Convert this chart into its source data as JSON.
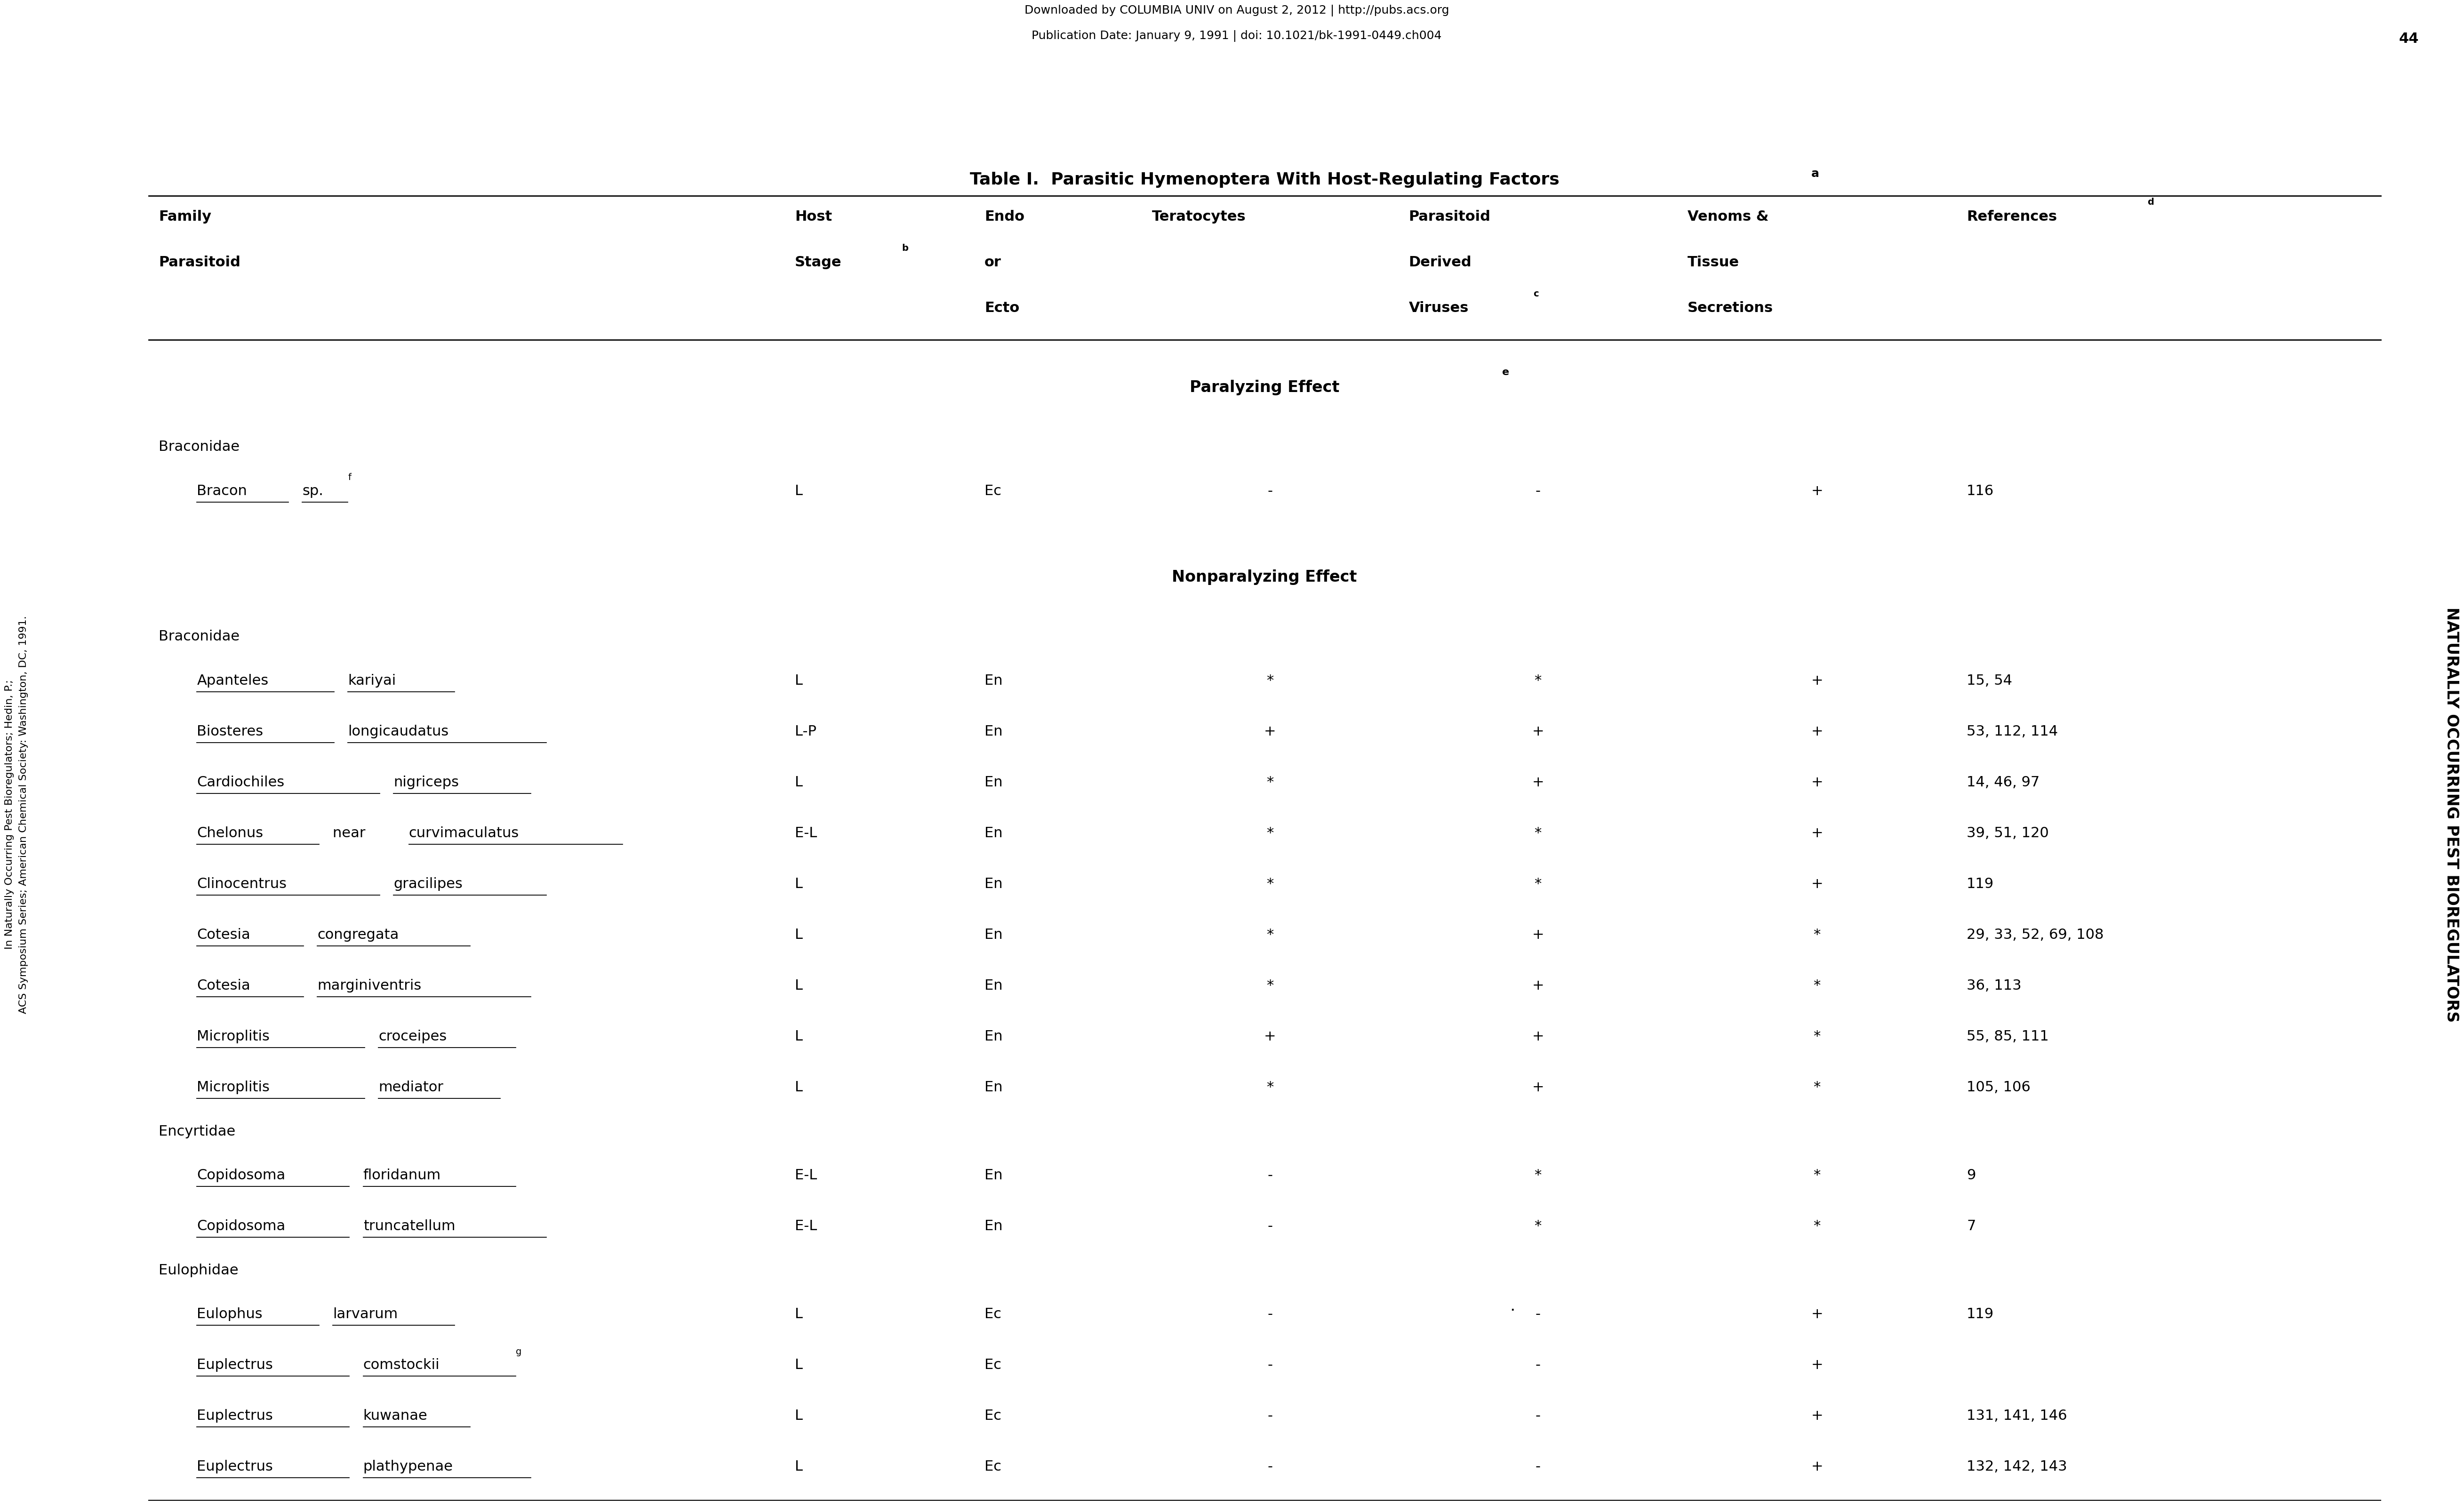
{
  "title": "Table I.  Parasitic Hymenoptera With Host-Regulating Factors",
  "title_superscript": "a",
  "header_top_line1": "Downloaded by COLUMBIA UNIV on August 2, 2012 | http://pubs.acs.org",
  "header_top_line2": "Publication Date: January 9, 1991 | doi: 10.1021/bk-1991-0449.ch004",
  "page_number": "44",
  "right_margin_text": "NATURALLY OCCURRING PEST BIOREGULATORS",
  "left_margin_line1": "In Naturally Occurring Pest Bioregulators; Hedin, P.;",
  "left_margin_line2": "ACS Symposium Series; American Chemical Society: Washington, DC, 1991.",
  "bg_color": "#ffffff",
  "text_color": "#000000",
  "font_size": 22,
  "title_font_size": 26,
  "rows": [
    {
      "family": "Braconidae",
      "show_family": true,
      "species": "Bracon sp.",
      "species_sup": "f",
      "host": "L",
      "endo_ecto": "Ec",
      "teratocytes": "-",
      "pv": "-",
      "venoms": "+",
      "refs": "116",
      "section": 0
    },
    {
      "family": "Braconidae",
      "show_family": true,
      "species": "Apanteles kariyai",
      "species_sup": "",
      "host": "L",
      "endo_ecto": "En",
      "teratocytes": "*",
      "pv": "*",
      "venoms": "+",
      "refs": "15, 54",
      "section": 1
    },
    {
      "family": "",
      "show_family": false,
      "species": "Biosteres longicaudatus",
      "species_sup": "",
      "host": "L-P",
      "endo_ecto": "En",
      "teratocytes": "+",
      "pv": "+",
      "venoms": "+",
      "refs": "53, 112, 114",
      "section": 1
    },
    {
      "family": "",
      "show_family": false,
      "species": "Cardiochiles nigriceps",
      "species_sup": "",
      "host": "L",
      "endo_ecto": "En",
      "teratocytes": "*",
      "pv": "+",
      "venoms": "+",
      "refs": "14, 46, 97",
      "section": 1
    },
    {
      "family": "",
      "show_family": false,
      "species": "Chelonus near curvimaculatus",
      "species_sup": "",
      "host": "E-L",
      "endo_ecto": "En",
      "teratocytes": "*",
      "pv": "*",
      "venoms": "+",
      "refs": "39, 51, 120",
      "section": 1
    },
    {
      "family": "",
      "show_family": false,
      "species": "Clinocentrus gracilipes",
      "species_sup": "",
      "host": "L",
      "endo_ecto": "En",
      "teratocytes": "*",
      "pv": "*",
      "venoms": "+",
      "refs": "119",
      "section": 1
    },
    {
      "family": "",
      "show_family": false,
      "species": "Cotesia congregata",
      "species_sup": "",
      "host": "L",
      "endo_ecto": "En",
      "teratocytes": "*",
      "pv": "+",
      "venoms": "*",
      "refs": "29, 33, 52, 69, 108",
      "section": 1
    },
    {
      "family": "",
      "show_family": false,
      "species": "Cotesia marginiventris",
      "species_sup": "",
      "host": "L",
      "endo_ecto": "En",
      "teratocytes": "*",
      "pv": "+",
      "venoms": "*",
      "refs": "36, 113",
      "section": 1
    },
    {
      "family": "",
      "show_family": false,
      "species": "Microplitis croceipes",
      "species_sup": "",
      "host": "L",
      "endo_ecto": "En",
      "teratocytes": "+",
      "pv": "+",
      "venoms": "*",
      "refs": "55, 85, 111",
      "section": 1
    },
    {
      "family": "",
      "show_family": false,
      "species": "Microplitis mediator",
      "species_sup": "",
      "host": "L",
      "endo_ecto": "En",
      "teratocytes": "*",
      "pv": "+",
      "venoms": "*",
      "refs": "105, 106",
      "section": 1
    },
    {
      "family": "Encyrtidae",
      "show_family": true,
      "species": "Copidosoma floridanum",
      "species_sup": "",
      "host": "E-L",
      "endo_ecto": "En",
      "teratocytes": "-",
      "pv": "*",
      "venoms": "*",
      "refs": "9",
      "section": 1
    },
    {
      "family": "",
      "show_family": false,
      "species": "Copidosoma truncatellum",
      "species_sup": "",
      "host": "E-L",
      "endo_ecto": "En",
      "teratocytes": "-",
      "pv": "*",
      "venoms": "*",
      "refs": "7",
      "section": 1
    },
    {
      "family": "Eulophidae",
      "show_family": true,
      "species": "Eulophus larvarum",
      "species_sup": "",
      "host": "L",
      "endo_ecto": "Ec",
      "teratocytes": "-",
      "pv": "-",
      "venoms": "+",
      "refs": "119",
      "section": 1,
      "dot": true
    },
    {
      "family": "",
      "show_family": false,
      "species": "Euplectrus comstockii",
      "species_sup": "g",
      "host": "L",
      "endo_ecto": "Ec",
      "teratocytes": "-",
      "pv": "-",
      "venoms": "+",
      "refs": "",
      "section": 1
    },
    {
      "family": "",
      "show_family": false,
      "species": "Euplectrus kuwanae",
      "species_sup": "",
      "host": "L",
      "endo_ecto": "Ec",
      "teratocytes": "-",
      "pv": "-",
      "venoms": "+",
      "refs": "131, 141, 146",
      "section": 1
    },
    {
      "family": "",
      "show_family": false,
      "species": "Euplectrus plathypenae",
      "species_sup": "",
      "host": "L",
      "endo_ecto": "Ec",
      "teratocytes": "-",
      "pv": "-",
      "venoms": "+",
      "refs": "132, 142, 143",
      "section": 1
    }
  ]
}
